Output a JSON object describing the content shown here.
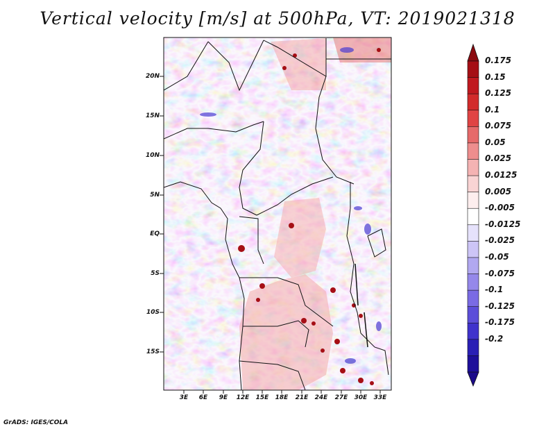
{
  "title": "Vertical velocity [m/s] at 500hPa, VT: 2019021318",
  "footer": "GrADS: IGES/COLA",
  "map": {
    "variable": "Vertical velocity",
    "units": "m/s",
    "level": "500hPa",
    "valid_time": "2019021318",
    "lat_labels": [
      "20N",
      "15N",
      "10N",
      "5N",
      "EQ",
      "5S",
      "10S",
      "15S"
    ],
    "lon_labels": [
      "3E",
      "6E",
      "9E",
      "12E",
      "15E",
      "18E",
      "21E",
      "24E",
      "27E",
      "30E",
      "33E"
    ]
  },
  "colorbar": {
    "labels": [
      "0.175",
      "0.15",
      "0.125",
      "0.1",
      "0.075",
      "0.05",
      "0.025",
      "0.0125",
      "0.005",
      "-0.005",
      "-0.0125",
      "-0.025",
      "-0.05",
      "-0.075",
      "-0.1",
      "-0.125",
      "-0.175",
      "-0.2"
    ],
    "colors": [
      "#a50f15",
      "#c0191f",
      "#d22b2b",
      "#e04444",
      "#e66a6a",
      "#ee8e8e",
      "#f4b3b3",
      "#f9d4d4",
      "#fdeeee",
      "#ffffff",
      "#e6e2fb",
      "#cdc5f6",
      "#b1a8f0",
      "#9588ea",
      "#7a6be4",
      "#5c4ed9",
      "#3f32cc",
      "#2a1fb5",
      "#1e0f9a"
    ],
    "top_color": "#8b0a0f",
    "bottom_color": "#1b0a8a"
  }
}
